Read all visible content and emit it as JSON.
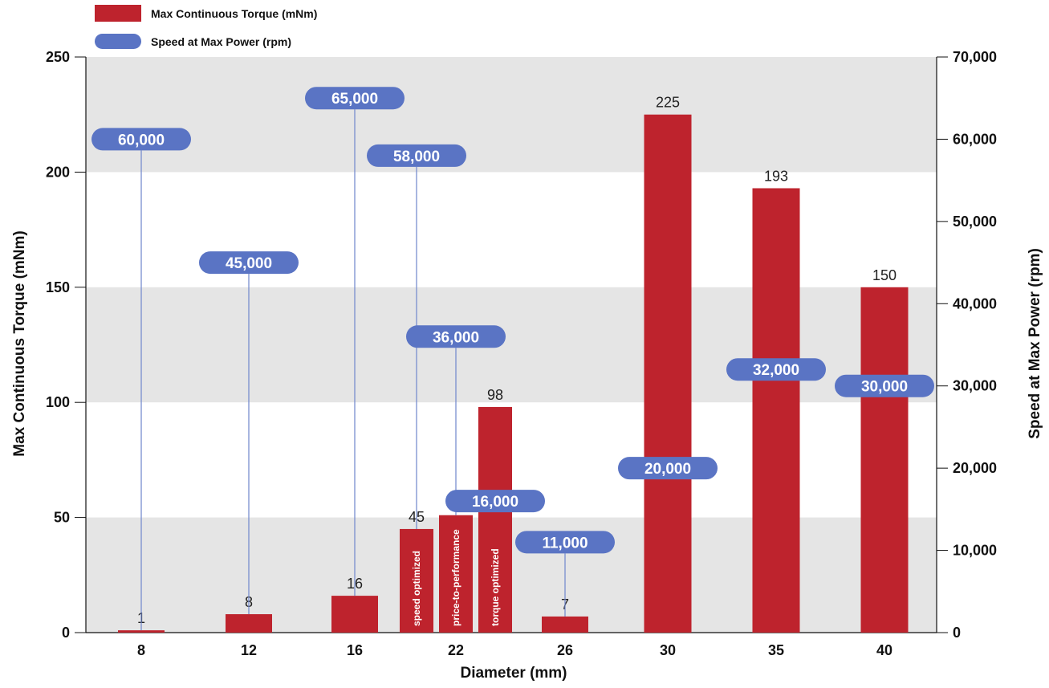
{
  "chart_data": {
    "type": "bar",
    "xlabel": "Diameter (mm)",
    "ylabel": "Max Continuous Torque (mNm)",
    "y2label": "Speed at Max Power (rpm)",
    "ylim": [
      0,
      250
    ],
    "y2lim": [
      0,
      70000
    ],
    "yticks": [
      "0",
      "50",
      "100",
      "150",
      "200",
      "250"
    ],
    "y2ticks": [
      "0",
      "10,000",
      "20,000",
      "30,000",
      "40,000",
      "50,000",
      "60,000",
      "70,000"
    ],
    "grid": "alternating horizontal bands",
    "legend_position": "top-left",
    "colors": {
      "torque": "#be232d",
      "speed": "#5a74c4",
      "band": "#e5e5e5",
      "leader": "#6f86cc"
    },
    "categories": [
      "8",
      "12",
      "16",
      "22",
      "26",
      "30",
      "35",
      "40"
    ],
    "series": [
      {
        "name": "Max Continuous Torque (mNm)",
        "axis": "left",
        "points": [
          {
            "category": "8",
            "value": 1,
            "label": "1"
          },
          {
            "category": "12",
            "value": 8,
            "label": "8"
          },
          {
            "category": "16",
            "value": 16,
            "label": "16"
          },
          {
            "category": "22",
            "value": 45,
            "label": "45",
            "note": "speed optimized"
          },
          {
            "category": "22",
            "value": 51,
            "label": "51",
            "note": "price-to-performance"
          },
          {
            "category": "22",
            "value": 98,
            "label": "98",
            "note": "torque optimized"
          },
          {
            "category": "26",
            "value": 7,
            "label": "7"
          },
          {
            "category": "30",
            "value": 225,
            "label": "225"
          },
          {
            "category": "35",
            "value": 193,
            "label": "193"
          },
          {
            "category": "40",
            "value": 150,
            "label": "150"
          }
        ]
      },
      {
        "name": "Speed at Max Power (rpm)",
        "axis": "right",
        "points": [
          {
            "category": "8",
            "value": 60000,
            "label": "60,000"
          },
          {
            "category": "12",
            "value": 45000,
            "label": "45,000"
          },
          {
            "category": "16",
            "value": 65000,
            "label": "65,000"
          },
          {
            "category": "22",
            "value": 58000,
            "label": "58,000"
          },
          {
            "category": "22",
            "value": 36000,
            "label": "36,000"
          },
          {
            "category": "22",
            "value": 16000,
            "label": "16,000"
          },
          {
            "category": "26",
            "value": 11000,
            "label": "11,000"
          },
          {
            "category": "30",
            "value": 20000,
            "label": "20,000"
          },
          {
            "category": "35",
            "value": 32000,
            "label": "32,000"
          },
          {
            "category": "40",
            "value": 30000,
            "label": "30,000"
          }
        ]
      }
    ]
  }
}
